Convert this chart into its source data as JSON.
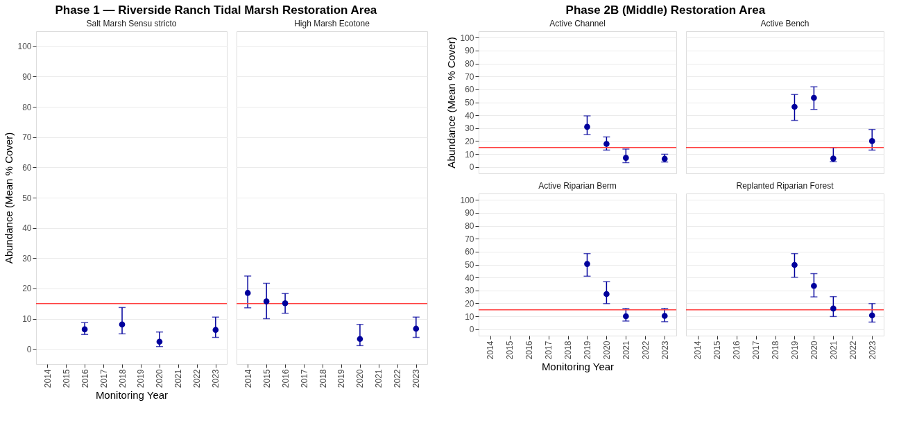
{
  "chart_data": [
    {
      "type": "scatter",
      "title": "Phase 1 — Riverside Ranch Tidal Marsh Restoration Area",
      "subtitle": "Salt Marsh Sensu stricto",
      "xlabel": "Monitoring Year",
      "ylabel": "Abundance (Mean % Cover)",
      "x": [
        2016,
        2018,
        2020,
        2023
      ],
      "series": [
        {
          "color": "#00009c",
          "values": [
            6.5,
            8.1,
            2.4,
            6.3
          ],
          "errors": [
            [
              4.8,
              8.7
            ],
            [
              5,
              13.7
            ],
            [
              0.8,
              5.6
            ],
            [
              3.8,
              10.5
            ]
          ]
        }
      ],
      "xlim": [
        2013.4,
        2023.6
      ],
      "xticks": [
        2014,
        2015,
        2016,
        2017,
        2018,
        2019,
        2020,
        2021,
        2022,
        2023
      ],
      "ylim": [
        -5,
        105
      ],
      "yticks": [
        0,
        10,
        20,
        30,
        40,
        50,
        60,
        70,
        80,
        90,
        100
      ],
      "ref_lines": [
        {
          "axis": "y",
          "value": 15,
          "color": "#ff4040"
        }
      ],
      "grid": "y",
      "marker": "circle"
    },
    {
      "type": "scatter",
      "subtitle": "High Marsh Ecotone",
      "x": [
        2014,
        2015,
        2016,
        2020,
        2023
      ],
      "series": [
        {
          "color": "#00009c",
          "values": [
            18.5,
            15.7,
            15.1,
            3.3,
            6.7
          ],
          "errors": [
            [
              13.6,
              24.1
            ],
            [
              10,
              21.7
            ],
            [
              11.8,
              18.3
            ],
            [
              1.1,
              8.1
            ],
            [
              3.8,
              10.5
            ]
          ]
        }
      ],
      "xlim": [
        2013.4,
        2023.6
      ],
      "xticks": [
        2014,
        2015,
        2016,
        2017,
        2018,
        2019,
        2020,
        2021,
        2022,
        2023
      ],
      "ylim": [
        -5,
        105
      ],
      "yticks": [
        0,
        10,
        20,
        30,
        40,
        50,
        60,
        70,
        80,
        90,
        100
      ],
      "ref_lines": [
        {
          "axis": "y",
          "value": 15,
          "color": "#ff4040"
        }
      ],
      "grid": "y",
      "marker": "circle",
      "tick_labels": "x"
    },
    {
      "type": "scatter",
      "title": "Phase 2B (Middle) Restoration Area",
      "subtitle": "Active Channel",
      "ylabel": "Abundance (Mean % Cover)",
      "x": [
        2019,
        2020,
        2021,
        2023
      ],
      "series": [
        {
          "color": "#00009c",
          "values": [
            31,
            17.8,
            7,
            6.3
          ],
          "errors": [
            [
              25,
              39.5
            ],
            [
              13,
              23.2
            ],
            [
              3.3,
              13.8
            ],
            [
              3.8,
              9.8
            ]
          ]
        }
      ],
      "xlim": [
        2013.4,
        2023.6
      ],
      "xticks": [
        2014,
        2015,
        2016,
        2017,
        2018,
        2019,
        2020,
        2021,
        2022,
        2023
      ],
      "ylim": [
        -5,
        105
      ],
      "yticks": [
        0,
        10,
        20,
        30,
        40,
        50,
        60,
        70,
        80,
        90,
        100
      ],
      "ref_lines": [
        {
          "axis": "y",
          "value": 15,
          "color": "#ff4040"
        }
      ],
      "grid": "y",
      "marker": "circle",
      "tick_labels": "y"
    },
    {
      "type": "scatter",
      "subtitle": "Active Bench",
      "x": [
        2019,
        2020,
        2021,
        2023
      ],
      "series": [
        {
          "color": "#00009c",
          "values": [
            46.5,
            53.5,
            6.5,
            20
          ],
          "errors": [
            [
              36,
              56
            ],
            [
              44.5,
              62
            ],
            [
              4,
              15
            ],
            [
              13,
              29
            ]
          ]
        }
      ],
      "xlim": [
        2013.4,
        2023.6
      ],
      "xticks": [
        2014,
        2015,
        2016,
        2017,
        2018,
        2019,
        2020,
        2021,
        2022,
        2023
      ],
      "ylim": [
        -5,
        105
      ],
      "yticks": [
        0,
        10,
        20,
        30,
        40,
        50,
        60,
        70,
        80,
        90,
        100
      ],
      "ref_lines": [
        {
          "axis": "y",
          "value": 15,
          "color": "#ff4040"
        }
      ],
      "grid": "y",
      "marker": "circle",
      "tick_labels": false
    },
    {
      "type": "scatter",
      "subtitle": "Active Riparian Berm",
      "xlabel": "Monitoring Year",
      "x": [
        2019,
        2020,
        2021,
        2023
      ],
      "series": [
        {
          "color": "#00009c",
          "values": [
            50.5,
            27.2,
            10,
            10.3
          ],
          "errors": [
            [
              41,
              58.5
            ],
            [
              19.8,
              36.8
            ],
            [
              6.3,
              16
            ],
            [
              5.8,
              16
            ]
          ]
        }
      ],
      "xlim": [
        2013.4,
        2023.6
      ],
      "xticks": [
        2014,
        2015,
        2016,
        2017,
        2018,
        2019,
        2020,
        2021,
        2022,
        2023
      ],
      "ylim": [
        -5,
        105
      ],
      "yticks": [
        0,
        10,
        20,
        30,
        40,
        50,
        60,
        70,
        80,
        90,
        100
      ],
      "ref_lines": [
        {
          "axis": "y",
          "value": 15,
          "color": "#ff4040"
        }
      ],
      "grid": "y",
      "marker": "circle"
    },
    {
      "type": "scatter",
      "subtitle": "Replanted Riparian Forest",
      "x": [
        2019,
        2020,
        2021,
        2023
      ],
      "series": [
        {
          "color": "#00009c",
          "values": [
            49.7,
            33.5,
            16,
            10.7
          ],
          "errors": [
            [
              40.2,
              58.5
            ],
            [
              25,
              43
            ],
            [
              9.8,
              25.2
            ],
            [
              5.5,
              19.8
            ]
          ]
        }
      ],
      "xlim": [
        2013.4,
        2023.6
      ],
      "xticks": [
        2014,
        2015,
        2016,
        2017,
        2018,
        2019,
        2020,
        2021,
        2022,
        2023
      ],
      "ylim": [
        -5,
        105
      ],
      "yticks": [
        0,
        10,
        20,
        30,
        40,
        50,
        60,
        70,
        80,
        90,
        100
      ],
      "ref_lines": [
        {
          "axis": "y",
          "value": 15,
          "color": "#ff4040"
        }
      ],
      "grid": "y",
      "marker": "circle",
      "tick_labels": "x"
    }
  ]
}
